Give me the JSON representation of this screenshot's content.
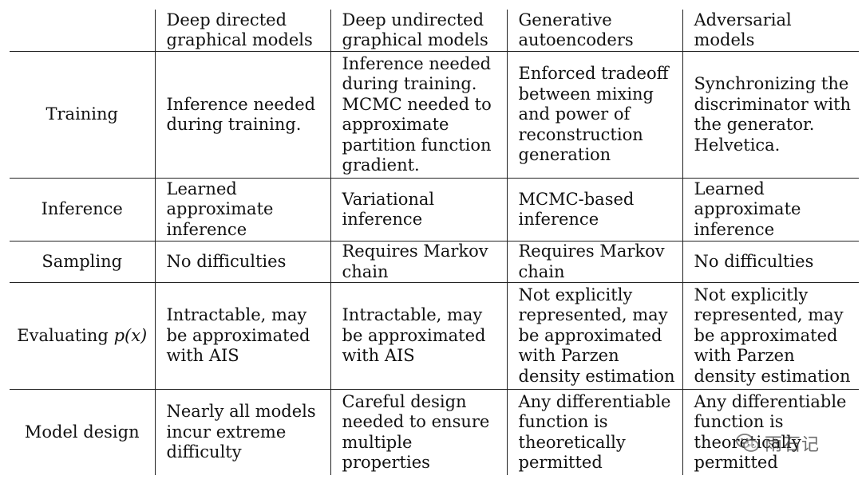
{
  "table": {
    "headers": [
      "",
      "Deep directed graphical models",
      "Deep undirected graphical models",
      "Generative autoencoders",
      "Adversarial models"
    ],
    "rows": [
      {
        "label": "Training",
        "cells": [
          "Inference needed during training.",
          "Inference needed during training. MCMC needed to approximate partition function gradient.",
          "Enforced tradeoff between mixing and power of reconstruction generation",
          "Synchronizing the discriminator with the generator. Helvetica."
        ]
      },
      {
        "label": "Inference",
        "cells": [
          "Learned approximate inference",
          "Variational inference",
          "MCMC-based inference",
          "Learned approximate inference"
        ]
      },
      {
        "label": "Sampling",
        "cells": [
          "No difficulties",
          "Requires Markov chain",
          "Requires Markov chain",
          "No difficulties"
        ]
      },
      {
        "label_prefix": "Evaluating",
        "label_math": "p(x)",
        "cells": [
          "Intractable, may be approximated with AIS",
          "Intractable, may be approximated with AIS",
          "Not explicitly represented, may be approximated with Parzen density estimation",
          "Not explicitly represented, may be approximated with Parzen density estimation"
        ]
      },
      {
        "label": "Model design",
        "cells": [
          "Nearly all models incur extreme difficulty",
          "Careful design needed to ensure multiple properties",
          "Any differentiable function is theoretically permitted",
          "Any differentiable function is theoretically permitted"
        ]
      }
    ]
  },
  "watermark": {
    "text": "雨石记",
    "icon": "wechat-icon"
  }
}
